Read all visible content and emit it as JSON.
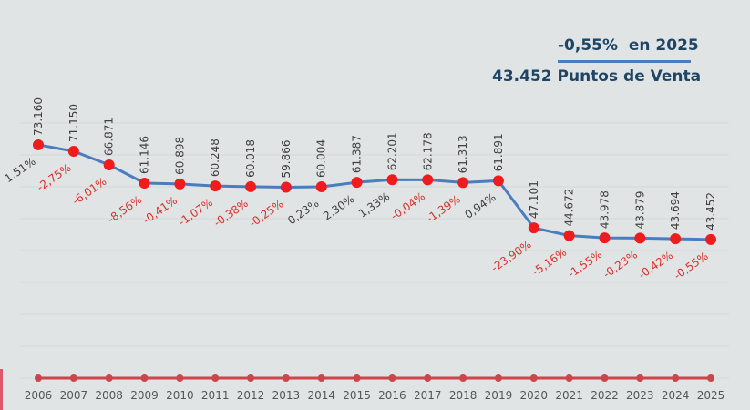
{
  "headline": {
    "change_text": "-0,55%  en 2025",
    "total_text": "43.452 Puntos de Venta"
  },
  "colors": {
    "background": "#e1e4e5",
    "headline": "#1e4566",
    "main_line": "#4a7cc0",
    "marker": "#ee1c1c",
    "negative_pct": "#d9302b",
    "positive_pct": "#404040",
    "baseline": "#c9464b"
  },
  "chart_data": {
    "type": "line",
    "title": "-0,55% en 2025 — 43.452 Puntos de Venta",
    "xlabel": "",
    "ylabel": "",
    "ylim": [
      0,
      80000
    ],
    "grid": true,
    "categories": [
      "2006",
      "2007",
      "2008",
      "2009",
      "2010",
      "2011",
      "2012",
      "2013",
      "2014",
      "2015",
      "2016",
      "2017",
      "2018",
      "2019",
      "2020",
      "2021",
      "2022",
      "2023",
      "2024",
      "2025"
    ],
    "series": [
      {
        "name": "Puntos de Venta",
        "values": [
          73160,
          71150,
          66871,
          61146,
          60898,
          60248,
          60018,
          59866,
          60004,
          61387,
          62201,
          62178,
          61313,
          61891,
          47101,
          44672,
          43978,
          43879,
          43694,
          43452
        ],
        "value_labels": [
          "73.160",
          "71.150",
          "66.871",
          "61.146",
          "60.898",
          "60.248",
          "60.018",
          "59.866",
          "60.004",
          "61.387",
          "62.201",
          "62.178",
          "61.313",
          "61.891",
          "47.101",
          "44.672",
          "43.978",
          "43.879",
          "43.694",
          "43.452"
        ],
        "change_labels": [
          "1,51%",
          "-2,75%",
          "-6,01%",
          "-8,56%",
          "-0,41%",
          "-1,07%",
          "-0,38%",
          "-0,25%",
          "0,23%",
          "2,30%",
          "1,33%",
          "-0,04%",
          "-1,39%",
          "0,94%",
          "-23,90%",
          "-5,16%",
          "-1,55%",
          "-0,23%",
          "-0,42%",
          "-0,55%"
        ]
      },
      {
        "name": "baseline",
        "values": [
          0,
          0,
          0,
          0,
          0,
          0,
          0,
          0,
          0,
          0,
          0,
          0,
          0,
          0,
          0,
          0,
          0,
          0,
          0,
          0
        ]
      }
    ]
  }
}
